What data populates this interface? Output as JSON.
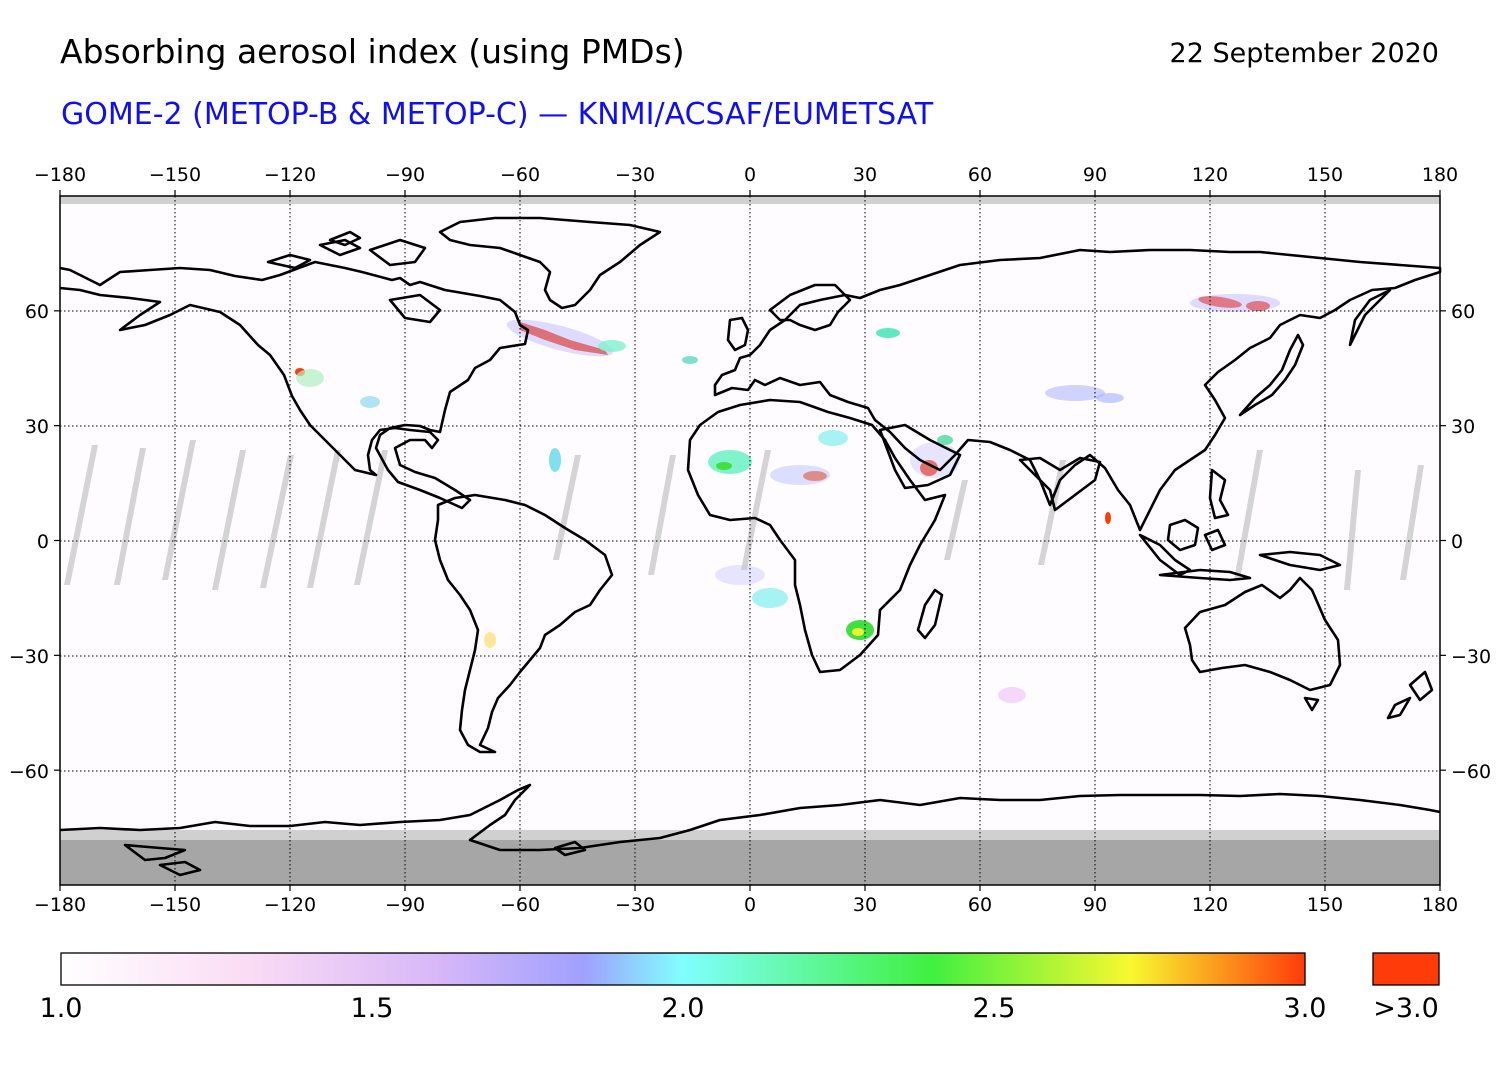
{
  "header": {
    "title": "Absorbing aerosol index (using PMDs)",
    "date": "22 September 2020",
    "subtitle": "GOME-2 (METOP-B & METOP-C) — KNMI/ACSAF/EUMETSAT"
  },
  "map": {
    "projection": "equirectangular",
    "lon_ticks": [
      "−180",
      "−150",
      "−120",
      "−90",
      "−60",
      "−30",
      "0",
      "30",
      "60",
      "90",
      "120",
      "150",
      "180"
    ],
    "lat_ticks": [
      "60",
      "30",
      "0",
      "−30",
      "−60"
    ],
    "lon_range": [
      -180,
      180
    ],
    "lat_range": [
      -90,
      90
    ],
    "gridlines": "dotted",
    "colors": {
      "land_outline": "#000000",
      "no_data_polar": "#a6a6a6",
      "no_data_gap": "#d0d0d0",
      "high_aerosol": "#ff3b0a"
    }
  },
  "colorbar": {
    "labels": [
      "1.0",
      "1.5",
      "2.0",
      "2.5",
      "3.0"
    ],
    "overflow_label": ">3.0",
    "stops": [
      "#ffffff",
      "#f8d8f4",
      "#a0a0ff",
      "#80ffff",
      "#40f040",
      "#f8f830",
      "#ff3b0a"
    ],
    "overflow_color": "#ff3b0a"
  }
}
